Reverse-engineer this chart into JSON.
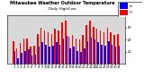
{
  "title": "Milwaukee Weather Outdoor Temperature",
  "subtitle": "Daily High/Low",
  "days": [
    1,
    2,
    3,
    4,
    5,
    6,
    7,
    8,
    9,
    10,
    11,
    12,
    13,
    14,
    15,
    16,
    17,
    18,
    19,
    20,
    21,
    22,
    23,
    24,
    25,
    26,
    27,
    28,
    29,
    30,
    31
  ],
  "highs": [
    38,
    25,
    35,
    42,
    42,
    28,
    30,
    50,
    60,
    55,
    52,
    50,
    58,
    55,
    68,
    72,
    45,
    48,
    42,
    40,
    48,
    65,
    72,
    62,
    58,
    55,
    52,
    60,
    52,
    48,
    50
  ],
  "lows": [
    22,
    10,
    18,
    22,
    24,
    14,
    16,
    28,
    36,
    32,
    28,
    30,
    36,
    32,
    42,
    46,
    26,
    28,
    22,
    20,
    26,
    38,
    44,
    40,
    36,
    32,
    30,
    38,
    32,
    28,
    30
  ],
  "high_color": "#FF0000",
  "low_color": "#0000FF",
  "bg_color": "#FFFFFF",
  "plot_bg_color": "#D8D8D8",
  "ylim": [
    0,
    80
  ],
  "yticks": [
    20,
    40,
    60,
    80
  ],
  "dashed_line_x": 14.5,
  "legend_high": "High",
  "legend_low": "Low"
}
